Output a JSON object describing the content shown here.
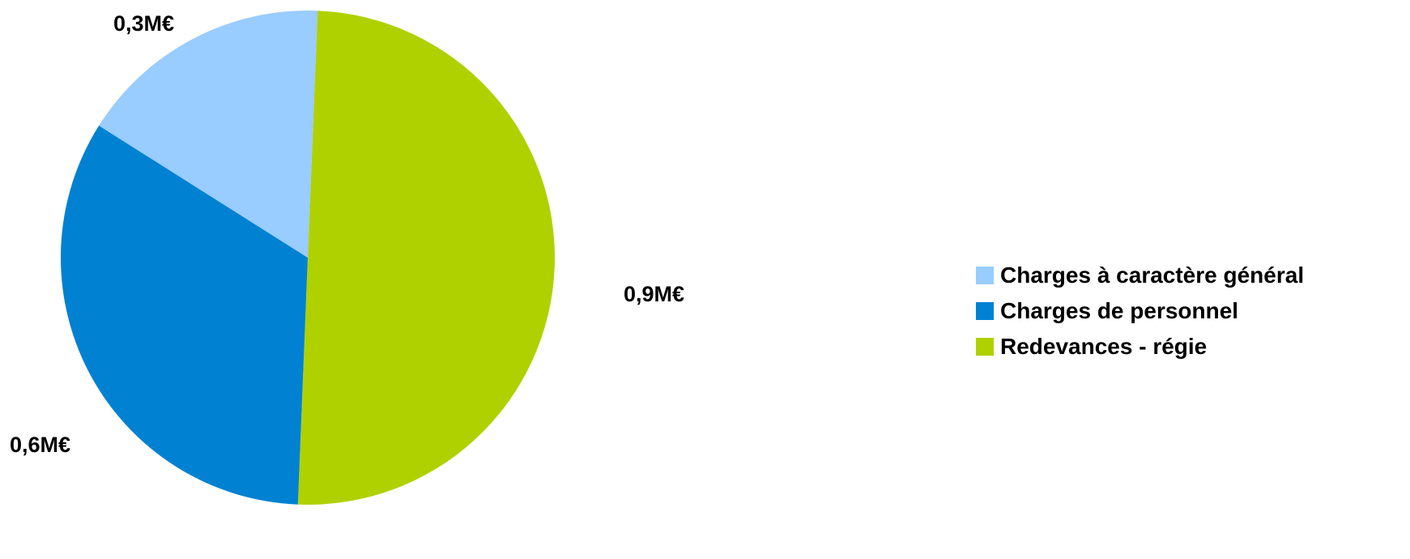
{
  "chart_data": {
    "type": "pie",
    "slices": [
      {
        "name": "Redevances - régie",
        "value": 0.9,
        "label": "0,9M€",
        "color": "#AFD100"
      },
      {
        "name": "Charges de personnel",
        "value": 0.6,
        "label": "0,6M€",
        "color": "#0081D2"
      },
      {
        "name": "Charges à caractère général",
        "value": 0.3,
        "label": "0,3M€",
        "color": "#99CCFF"
      }
    ],
    "legend": {
      "position": "right",
      "items": [
        {
          "label": "Charges à caractère général",
          "color": "#99CCFF"
        },
        {
          "label": "Charges de personnel",
          "color": "#0081D2"
        },
        {
          "label": "Redevances - régie",
          "color": "#AFD100"
        }
      ]
    }
  }
}
